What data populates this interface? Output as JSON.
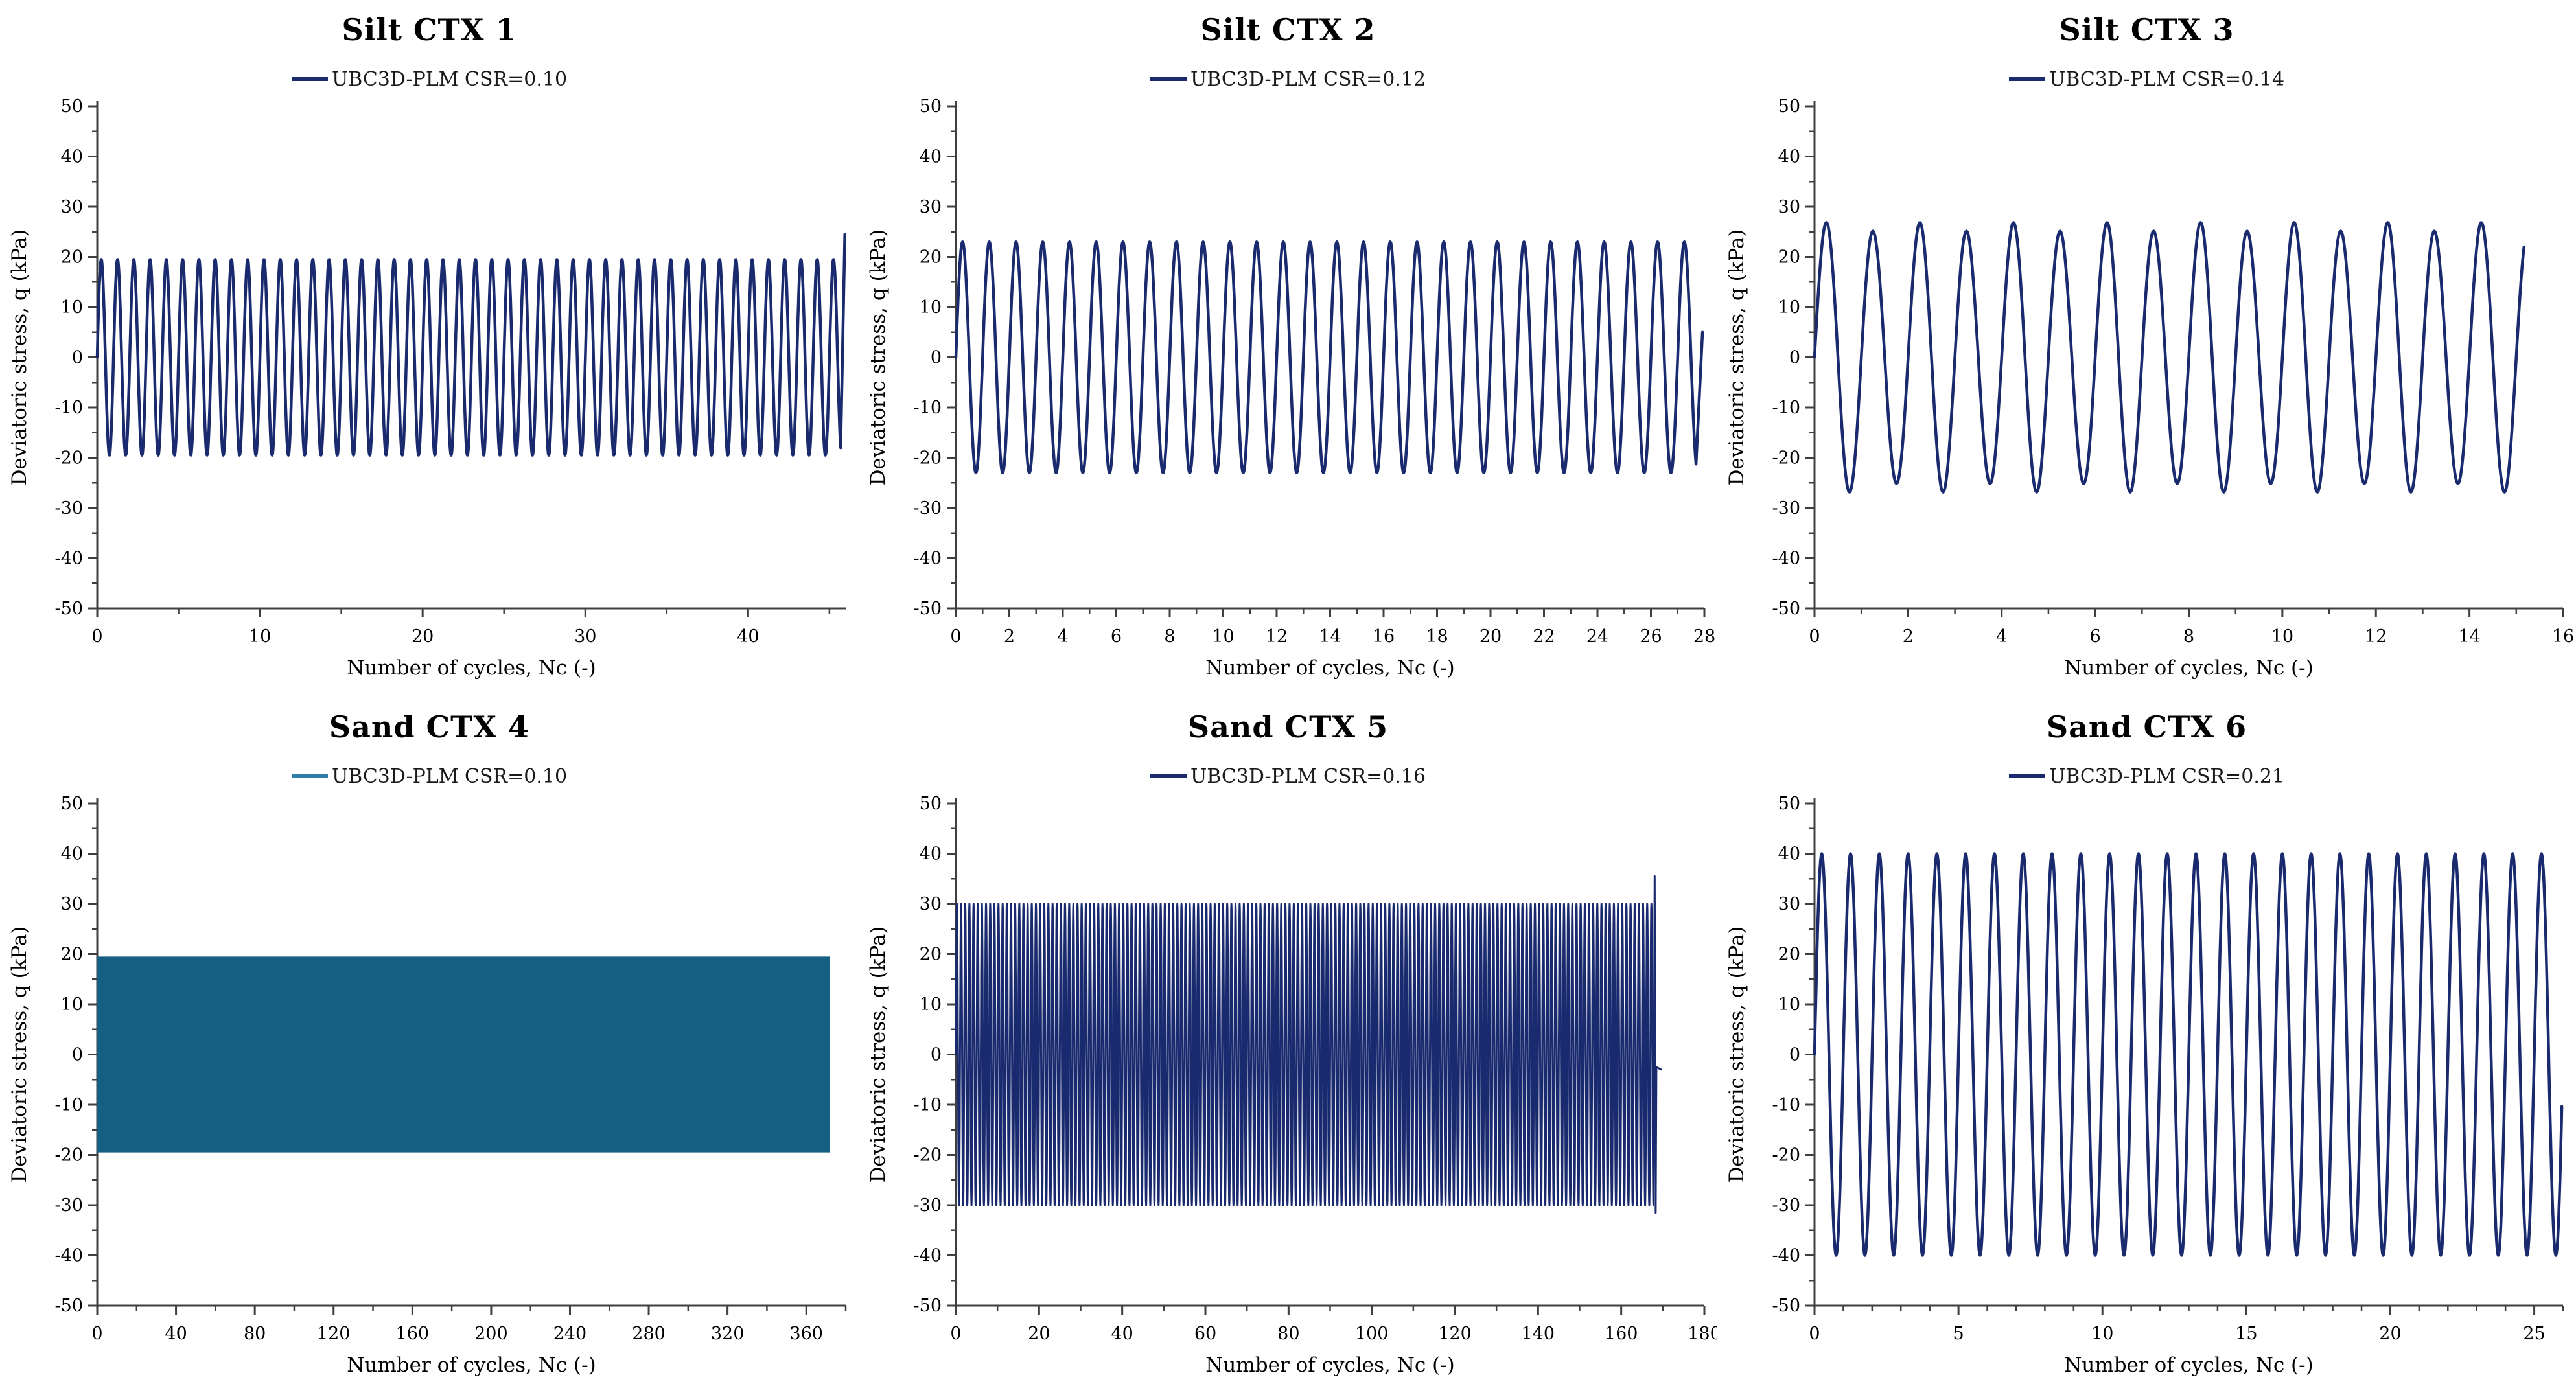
{
  "figure": {
    "xlabel": "Number of cycles, Nc (-)",
    "ylabel": "Deviatoric stress, q (kPa)",
    "ylim": [
      -50,
      50
    ],
    "ytick_step": 10,
    "yminor_step": 5,
    "grid": "off",
    "legend_position": "top-center",
    "axis_color": "#3f3f3f",
    "text_color": "#000000"
  },
  "chart_data": [
    {
      "type": "line",
      "title": "Silt CTX 1",
      "legend": "UBC3D-PLM CSR=0.10",
      "line_color": "#1a2a6e",
      "legend_color": "#1a2a6e",
      "xlabel": "Number of cycles, Nc (-)",
      "ylabel": "Deviatoric stress, q (kPa)",
      "xlim": [
        0,
        46
      ],
      "xtick_step": 10,
      "xminor_step": 5,
      "ylim": [
        -50,
        50
      ],
      "ytick_step": 10,
      "yminor_step": 5,
      "stroke_width": 4.5,
      "wave": {
        "shape": "sine",
        "amplitude": 19.5,
        "cycles_per_unit": 1,
        "x_start": 0,
        "x_end": 45.7,
        "samples_per_cycle": 48
      },
      "end_segment": [
        [
          45.95,
          24.5
        ]
      ]
    },
    {
      "type": "line",
      "title": "Silt CTX 2",
      "legend": "UBC3D-PLM CSR=0.12",
      "line_color": "#1a2a6e",
      "legend_color": "#1a2a6e",
      "xlabel": "Number of cycles, Nc (-)",
      "ylabel": "Deviatoric stress, q (kPa)",
      "xlim": [
        0,
        28
      ],
      "xtick_step": 2,
      "xminor_step": 1,
      "ylim": [
        -50,
        50
      ],
      "ytick_step": 10,
      "yminor_step": 5,
      "stroke_width": 4.5,
      "wave": {
        "shape": "sine",
        "amplitude": 23,
        "cycles_per_unit": 1,
        "x_start": 0,
        "x_end": 27.7,
        "samples_per_cycle": 48
      },
      "end_segment": [
        [
          27.93,
          5
        ]
      ]
    },
    {
      "type": "line",
      "title": "Silt CTX 3",
      "legend": "UBC3D-PLM CSR=0.14",
      "line_color": "#1a2a6e",
      "legend_color": "#1a2a6e",
      "xlabel": "Number of cycles, Nc (-)",
      "ylabel": "Deviatoric stress, q (kPa)",
      "xlim": [
        0,
        16
      ],
      "xtick_step": 2,
      "xminor_step": 1,
      "ylim": [
        -50,
        50
      ],
      "ytick_step": 10,
      "yminor_step": 5,
      "stroke_width": 4.5,
      "wave": {
        "shape": "sine",
        "amplitude": 26,
        "amp_wobble": 1.2,
        "wobble_period": 2,
        "cycles_per_unit": 1,
        "x_start": 0,
        "x_end": 15.17,
        "samples_per_cycle": 48
      }
    },
    {
      "type": "area",
      "title": "Sand CTX 4",
      "legend": "UBC3D-PLM CSR=0.10",
      "line_color": "#155f83",
      "legend_color": "#2e7ca7",
      "xlabel": "Number of cycles, Nc (-)",
      "ylabel": "Deviatoric stress, q (kPa)",
      "xlim": [
        0,
        380
      ],
      "xtick_step": 40,
      "xminor_step": 20,
      "ylim": [
        -50,
        50
      ],
      "ytick_step": 10,
      "yminor_step": 5,
      "band": {
        "x_start": 0,
        "x_end": 372,
        "y_top": 19.5,
        "y_bottom": -19.5
      }
    },
    {
      "type": "line",
      "title": "Sand CTX 5",
      "legend": "UBC3D-PLM CSR=0.16",
      "line_color": "#1a2a6e",
      "legend_color": "#1a2a6e",
      "xlabel": "Number of cycles, Nc (-)",
      "ylabel": "Deviatoric stress, q (kPa)",
      "xlim": [
        0,
        180
      ],
      "xtick_step": 20,
      "xminor_step": 10,
      "ylim": [
        -50,
        50
      ],
      "ytick_step": 10,
      "yminor_step": 5,
      "stroke_width": 3,
      "wave": {
        "shape": "sine",
        "amplitude": 30,
        "cycles_per_unit": 1,
        "x_start": 0,
        "x_end": 167.75,
        "samples_per_cycle": 24
      },
      "end_segment": [
        [
          168.05,
          35.5
        ],
        [
          168.3,
          -31.5
        ],
        [
          168.45,
          -2.5
        ],
        [
          169.6,
          -3
        ]
      ]
    },
    {
      "type": "line",
      "title": "Sand CTX 6",
      "legend": "UBC3D-PLM CSR=0.21",
      "line_color": "#1a2a6e",
      "legend_color": "#1a2a6e",
      "xlabel": "Number of cycles, Nc (-)",
      "ylabel": "Deviatoric stress, q (kPa)",
      "xlim": [
        0,
        26
      ],
      "xtick_step": 5,
      "xminor_step": 1,
      "ylim": [
        -50,
        50
      ],
      "ytick_step": 10,
      "yminor_step": 5,
      "stroke_width": 4.5,
      "wave": {
        "shape": "sine",
        "amplitude": 40,
        "cycles_per_unit": 1,
        "x_start": 0,
        "x_end": 25.96,
        "samples_per_cycle": 48
      }
    }
  ]
}
